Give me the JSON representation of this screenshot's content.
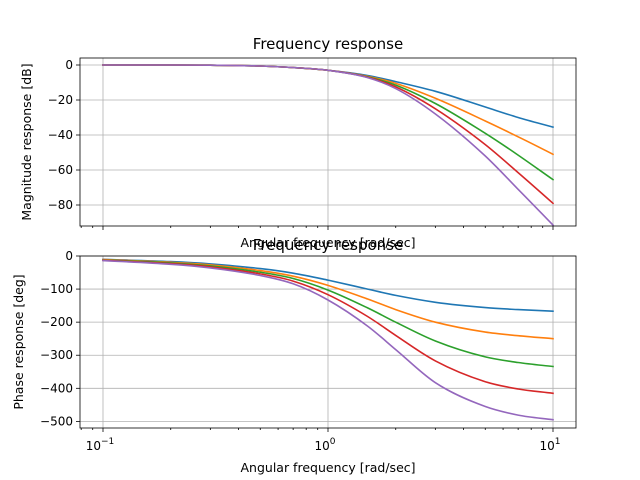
{
  "chart_data": [
    {
      "type": "line",
      "title": "Frequency response",
      "xlabel": "Angular frequency [rad/sec]",
      "ylabel": "Magnitude response [dB]",
      "xscale": "log",
      "xlim": [
        0.1,
        10
      ],
      "ylim": [
        -92,
        4
      ],
      "yticks": [
        0,
        -20,
        -40,
        -60,
        -80
      ],
      "ytick_labels": [
        "0",
        "−20",
        "−40",
        "−60",
        "−80"
      ],
      "grid": true,
      "x": [
        0.1,
        0.2,
        0.3,
        0.5,
        0.7,
        1.0,
        1.5,
        2.0,
        3.0,
        5.0,
        7.0,
        10.0
      ],
      "series": [
        {
          "color": "#1f77b4",
          "values": [
            0,
            0,
            -0.1,
            -0.6,
            -1.5,
            -3.0,
            -6.0,
            -9.5,
            -15.0,
            -24.0,
            -30.0,
            -35.5
          ]
        },
        {
          "color": "#ff7f0e",
          "values": [
            0,
            0,
            -0.1,
            -0.6,
            -1.5,
            -3.0,
            -6.5,
            -10.5,
            -19.0,
            -32.0,
            -41.0,
            -51.0
          ]
        },
        {
          "color": "#2ca02c",
          "values": [
            0,
            0,
            -0.1,
            -0.6,
            -1.5,
            -3.0,
            -6.8,
            -11.5,
            -22.0,
            -39.0,
            -51.5,
            -65.5
          ]
        },
        {
          "color": "#d62728",
          "values": [
            0,
            0,
            -0.1,
            -0.6,
            -1.5,
            -3.0,
            -7.0,
            -12.5,
            -25.0,
            -45.5,
            -61.5,
            -79.0
          ]
        },
        {
          "color": "#9467bd",
          "values": [
            0,
            0,
            -0.1,
            -0.6,
            -1.5,
            -3.0,
            -7.2,
            -13.5,
            -28.0,
            -52.0,
            -71.0,
            -91.5
          ]
        }
      ]
    },
    {
      "type": "line",
      "title": "Frequency response",
      "xlabel": "Angular frequency [rad/sec]",
      "ylabel": "Phase response [deg]",
      "xscale": "log",
      "xlim": [
        0.1,
        10
      ],
      "xticks": [
        0.1,
        1,
        10
      ],
      "xtick_labels": [
        [
          "10",
          "−1"
        ],
        [
          "10",
          "0"
        ],
        [
          "10",
          "1"
        ]
      ],
      "ylim": [
        -520,
        0
      ],
      "yticks": [
        0,
        -100,
        -200,
        -300,
        -400,
        -500
      ],
      "ytick_labels": [
        "0",
        "−100",
        "−200",
        "−300",
        "−400",
        "−500"
      ],
      "grid": true,
      "x": [
        0.1,
        0.2,
        0.3,
        0.5,
        0.7,
        1.0,
        1.5,
        2.0,
        3.0,
        5.0,
        7.0,
        10.0
      ],
      "series": [
        {
          "color": "#1f77b4",
          "values": [
            -10,
            -17,
            -24,
            -38,
            -52,
            -73,
            -100,
            -119,
            -140,
            -156,
            -162,
            -167
          ]
        },
        {
          "color": "#ff7f0e",
          "values": [
            -11,
            -19,
            -27,
            -44,
            -61,
            -89,
            -130,
            -162,
            -200,
            -230,
            -241,
            -250
          ]
        },
        {
          "color": "#2ca02c",
          "values": [
            -12,
            -21,
            -30,
            -49,
            -68,
            -103,
            -157,
            -200,
            -257,
            -305,
            -322,
            -334
          ]
        },
        {
          "color": "#d62728",
          "values": [
            -13,
            -23,
            -33,
            -54,
            -76,
            -117,
            -183,
            -240,
            -317,
            -380,
            -402,
            -415
          ]
        },
        {
          "color": "#9467bd",
          "values": [
            -14,
            -25,
            -36,
            -59,
            -84,
            -133,
            -212,
            -283,
            -383,
            -455,
            -481,
            -495
          ]
        }
      ]
    }
  ]
}
